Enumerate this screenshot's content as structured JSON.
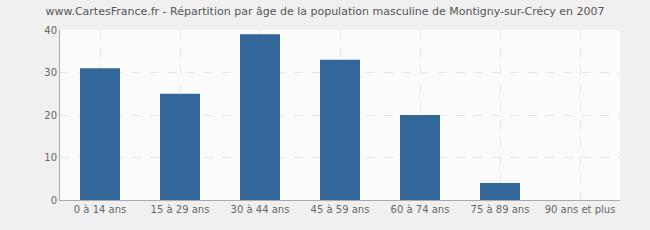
{
  "chart_data": {
    "type": "bar",
    "title": "www.CartesFrance.fr - Répartition par âge de la population masculine de Montigny-sur-Crécy en 2007",
    "categories": [
      "0 à 14 ans",
      "15 à 29 ans",
      "30 à 44 ans",
      "45 à 59 ans",
      "60 à 74 ans",
      "75 à 89 ans",
      "90 ans et plus"
    ],
    "values": [
      31,
      25,
      39,
      33,
      20,
      4,
      0
    ],
    "color": "#336699",
    "ylim": [
      0,
      40
    ],
    "yticks": [
      0,
      10,
      20,
      30,
      40
    ],
    "grid": true
  }
}
